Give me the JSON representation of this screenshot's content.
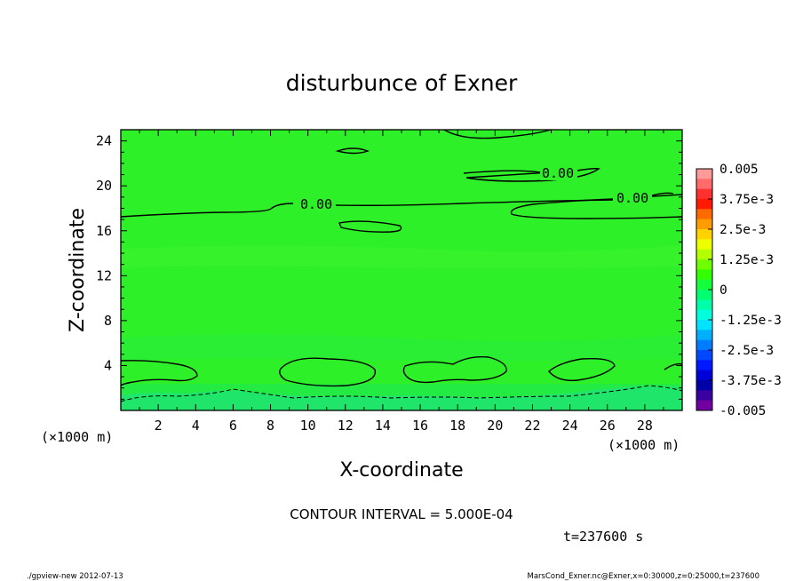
{
  "chart_data": {
    "type": "heatmap",
    "title": "disturbunce of Exner",
    "xlabel": "X-coordinate",
    "ylabel": "Z-coordinate",
    "x_unit": "(×1000 m)",
    "y_unit": "(×1000 m)",
    "xlim": [
      0,
      30
    ],
    "ylim": [
      0,
      25
    ],
    "x_ticks": [
      2,
      4,
      6,
      8,
      10,
      12,
      14,
      16,
      18,
      20,
      22,
      24,
      26,
      28
    ],
    "y_ticks": [
      4,
      8,
      12,
      16,
      20,
      24
    ],
    "colorbar": {
      "range": [
        -0.005,
        0.005
      ],
      "labels": [
        "0.005",
        "3.75e-3",
        "2.5e-3",
        "1.25e-3",
        "0",
        "-1.25e-3",
        "-2.5e-3",
        "-3.75e-3",
        "-0.005"
      ],
      "colors": [
        "#ff9a9a",
        "#ff6a6a",
        "#ff3030",
        "#ff1a00",
        "#ff6a00",
        "#ff9c00",
        "#ffd200",
        "#f0ff00",
        "#b4ff00",
        "#70ff00",
        "#34ff00",
        "#14ff3c",
        "#00ff70",
        "#00ffa8",
        "#00ffdc",
        "#00e4ff",
        "#00b0ff",
        "#007cff",
        "#0048ff",
        "#0018ff",
        "#0000d8",
        "#0000a8",
        "#3a00a0",
        "#7000a0"
      ]
    },
    "contour_interval": "CONTOUR INTERVAL = 5.000E-04",
    "contour_labels": [
      "0.00",
      "0.00",
      "0.00"
    ],
    "fill_note": "field ~0 (green) aloft, weakly negative (-2.5e-4 to -1e-3) below z≈3",
    "time_label": "t=237600 s"
  },
  "footer": {
    "left": "./gpview-new   2012-07-13",
    "right": "MarsCond_Exner.nc@Exner,x=0:30000,z=0:25000,t=237600"
  }
}
